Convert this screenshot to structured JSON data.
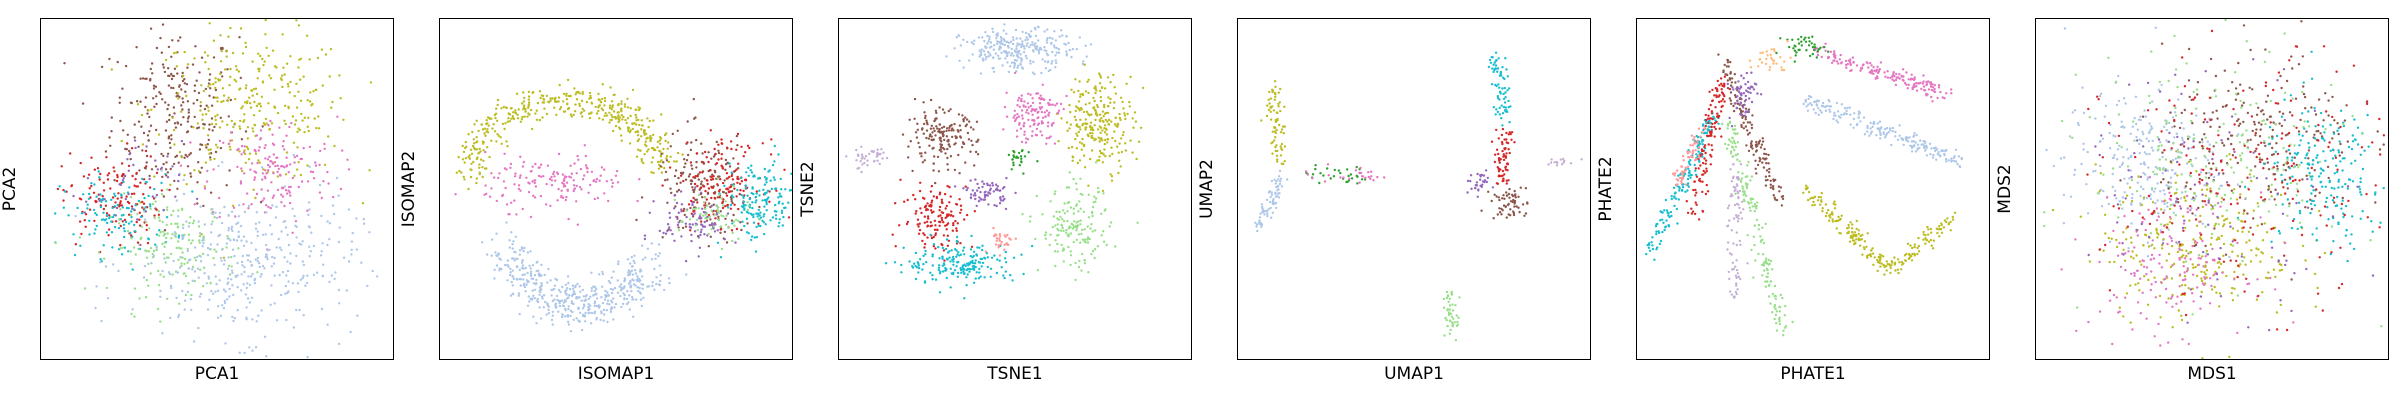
{
  "figure": {
    "description_type": "scatter grid"
  },
  "chart_data": [
    {
      "type": "scatter",
      "method": "PCA",
      "title": "",
      "xlabel": "PCA1",
      "ylabel": "PCA2",
      "xlim": [
        0,
        100
      ],
      "ylim": [
        0,
        100
      ],
      "xticks": [],
      "yticks": [],
      "legend": "none",
      "series": [
        {
          "name": "cluster-brown",
          "color": "#8c564b",
          "center": [
            38,
            72
          ],
          "spread": [
            9,
            13
          ],
          "n": 260
        },
        {
          "name": "cluster-olive",
          "color": "#bcbd22",
          "center": [
            60,
            74
          ],
          "spread": [
            14,
            11
          ],
          "n": 300
        },
        {
          "name": "cluster-pink",
          "color": "#e377c2",
          "center": [
            66,
            55
          ],
          "spread": [
            9,
            8
          ],
          "n": 160
        },
        {
          "name": "cluster-red",
          "color": "#d62728",
          "center": [
            20,
            47
          ],
          "spread": [
            7,
            7
          ],
          "n": 140
        },
        {
          "name": "cluster-cyan",
          "color": "#17becf",
          "center": [
            22,
            42
          ],
          "spread": [
            8,
            6
          ],
          "n": 120
        },
        {
          "name": "cluster-green",
          "color": "#98df8a",
          "center": [
            38,
            33
          ],
          "spread": [
            9,
            7
          ],
          "n": 170
        },
        {
          "name": "cluster-blue",
          "color": "#aec7e8",
          "center": [
            58,
            28
          ],
          "spread": [
            16,
            11
          ],
          "n": 380
        },
        {
          "name": "cluster-purple",
          "color": "#9467bd",
          "center": [
            26,
            50
          ],
          "spread": [
            7,
            7
          ],
          "n": 40
        }
      ]
    },
    {
      "type": "scatter",
      "method": "ISOMAP",
      "title": "",
      "xlabel": "ISOMAP1",
      "ylabel": "ISOMAP2",
      "xlim": [
        0,
        100
      ],
      "ylim": [
        0,
        100
      ],
      "xticks": [],
      "yticks": [],
      "legend": "none",
      "series": [
        {
          "name": "cluster-olive",
          "color": "#bcbd22",
          "shape": "arc",
          "arc": [
            36,
            52,
            28,
            24,
            0.2,
            3.0,
            5
          ],
          "n": 420
        },
        {
          "name": "cluster-blue",
          "color": "#aec7e8",
          "shape": "arc",
          "arc": [
            40,
            40,
            22,
            24,
            3.5,
            5.8,
            7
          ],
          "n": 460
        },
        {
          "name": "cluster-pink",
          "color": "#e377c2",
          "center": [
            33,
            52
          ],
          "spread": [
            10,
            4
          ],
          "n": 150
        },
        {
          "name": "cluster-brown",
          "color": "#8c564b",
          "center": [
            75,
            50
          ],
          "spread": [
            7,
            8
          ],
          "n": 180
        },
        {
          "name": "cluster-red",
          "color": "#d62728",
          "center": [
            80,
            52
          ],
          "spread": [
            6,
            6
          ],
          "n": 150
        },
        {
          "name": "cluster-cyan",
          "color": "#17becf",
          "center": [
            91,
            46
          ],
          "spread": [
            5,
            6
          ],
          "n": 160
        },
        {
          "name": "cluster-purple",
          "color": "#9467bd",
          "center": [
            72,
            40
          ],
          "spread": [
            5,
            4
          ],
          "n": 90
        },
        {
          "name": "cluster-green",
          "color": "#98df8a",
          "center": [
            78,
            42
          ],
          "spread": [
            5,
            4
          ],
          "n": 60
        }
      ]
    },
    {
      "type": "scatter",
      "method": "TSNE",
      "title": "",
      "xlabel": "TSNE1",
      "ylabel": "TSNE2",
      "xlim": [
        0,
        100
      ],
      "ylim": [
        0,
        100
      ],
      "xticks": [],
      "yticks": [],
      "legend": "none",
      "series": [
        {
          "name": "cluster-blue",
          "color": "#aec7e8",
          "center": [
            51,
            91
          ],
          "spread": [
            8,
            3
          ],
          "n": 260
        },
        {
          "name": "cluster-olive",
          "color": "#bcbd22",
          "center": [
            74,
            70
          ],
          "spread": [
            5,
            7
          ],
          "n": 240
        },
        {
          "name": "cluster-pink",
          "color": "#e377c2",
          "center": [
            55,
            72
          ],
          "spread": [
            4,
            4
          ],
          "n": 130
        },
        {
          "name": "cluster-brown",
          "color": "#8c564b",
          "center": [
            29,
            65
          ],
          "spread": [
            5,
            4
          ],
          "n": 170
        },
        {
          "name": "cluster-red",
          "color": "#d62728",
          "center": [
            28,
            42
          ],
          "spread": [
            5,
            5
          ],
          "n": 140
        },
        {
          "name": "cluster-cyan",
          "color": "#17becf",
          "center": [
            35,
            28
          ],
          "spread": [
            8,
            3
          ],
          "n": 190
        },
        {
          "name": "cluster-purple",
          "color": "#9467bd",
          "center": [
            42,
            49
          ],
          "spread": [
            3,
            2
          ],
          "n": 70
        },
        {
          "name": "cluster-green",
          "color": "#98df8a",
          "center": [
            67,
            38
          ],
          "spread": [
            5,
            6
          ],
          "n": 160
        },
        {
          "name": "cluster-lavender",
          "color": "#c5b0d5",
          "center": [
            9,
            59
          ],
          "spread": [
            3,
            2
          ],
          "n": 40
        },
        {
          "name": "cluster-salmon",
          "color": "#ff9896",
          "center": [
            46,
            35
          ],
          "spread": [
            2,
            2
          ],
          "n": 30
        },
        {
          "name": "cluster-dkgreen",
          "color": "#2ca02c",
          "center": [
            51,
            58
          ],
          "spread": [
            1.5,
            2
          ],
          "n": 25
        }
      ]
    },
    {
      "type": "scatter",
      "method": "UMAP",
      "title": "",
      "xlabel": "UMAP1",
      "ylabel": "UMAP2",
      "xlim": [
        0,
        100
      ],
      "ylim": [
        0,
        100
      ],
      "xticks": [],
      "yticks": [],
      "legend": "none",
      "series": [
        {
          "name": "cluster-olive",
          "color": "#bcbd22",
          "shape": "line",
          "line": [
            10,
            80,
            12,
            58
          ],
          "n": 70
        },
        {
          "name": "cluster-blue",
          "color": "#aec7e8",
          "shape": "line",
          "line": [
            12,
            54,
            6,
            38
          ],
          "n": 70
        },
        {
          "name": "cluster-cyan",
          "color": "#17becf",
          "shape": "line",
          "line": [
            73,
            90,
            76,
            70
          ],
          "n": 70
        },
        {
          "name": "cluster-red",
          "color": "#d62728",
          "shape": "line",
          "line": [
            76,
            68,
            75,
            52
          ],
          "n": 70
        },
        {
          "name": "cluster-brown",
          "color": "#8c564b",
          "center": [
            77,
            46
          ],
          "spread": [
            2.5,
            2.5
          ],
          "n": 60
        },
        {
          "name": "cluster-purple",
          "color": "#9467bd",
          "center": [
            68,
            52
          ],
          "spread": [
            2,
            1.5
          ],
          "n": 30
        },
        {
          "name": "cluster-green",
          "color": "#98df8a",
          "shape": "line",
          "line": [
            60,
            20,
            61,
            6
          ],
          "n": 45
        },
        {
          "name": "cluster-dkgreen",
          "color": "#2ca02c",
          "shape": "line",
          "line": [
            20,
            54,
            36,
            53
          ],
          "n": 30
        },
        {
          "name": "cluster-pink",
          "color": "#e377c2",
          "shape": "line",
          "line": [
            20,
            54,
            42,
            54
          ],
          "n": 25
        },
        {
          "name": "cluster-lavender",
          "color": "#c5b0d5",
          "center": [
            91,
            58
          ],
          "spread": [
            2,
            0.6
          ],
          "n": 15
        }
      ]
    },
    {
      "type": "scatter",
      "method": "PHATE",
      "title": "",
      "xlabel": "PHATE1",
      "ylabel": "PHATE2",
      "xlim": [
        0,
        100
      ],
      "ylim": [
        0,
        100
      ],
      "xticks": [],
      "yticks": [],
      "legend": "none",
      "series": [
        {
          "name": "cluster-olive",
          "color": "#bcbd22",
          "shape": "line",
          "line": [
            48,
            50,
            72,
            26
          ],
          "n": 140
        },
        {
          "name": "cluster-olive",
          "color": "#bcbd22",
          "shape": "line",
          "line": [
            72,
            26,
            90,
            42
          ],
          "n": 80
        },
        {
          "name": "cluster-pink",
          "color": "#e377c2",
          "shape": "line",
          "line": [
            52,
            90,
            88,
            78
          ],
          "n": 170
        },
        {
          "name": "cluster-blue",
          "color": "#aec7e8",
          "shape": "line",
          "line": [
            48,
            76,
            92,
            58
          ],
          "n": 200
        },
        {
          "name": "cluster-cyan",
          "color": "#17becf",
          "shape": "line",
          "line": [
            22,
            72,
            4,
            32
          ],
          "n": 160
        },
        {
          "name": "cluster-red",
          "color": "#d62728",
          "shape": "line",
          "line": [
            24,
            82,
            16,
            42
          ],
          "n": 130
        },
        {
          "name": "cluster-brown",
          "color": "#8c564b",
          "shape": "line",
          "line": [
            24,
            88,
            40,
            46
          ],
          "n": 140
        },
        {
          "name": "cluster-green",
          "color": "#98df8a",
          "shape": "line",
          "line": [
            26,
            70,
            42,
            6
          ],
          "n": 160
        },
        {
          "name": "cluster-lavender",
          "color": "#c5b0d5",
          "shape": "line",
          "line": [
            28,
            58,
            28,
            18
          ],
          "n": 80
        },
        {
          "name": "cluster-salmon",
          "color": "#ff9896",
          "shape": "line",
          "line": [
            18,
            68,
            12,
            52
          ],
          "n": 60
        },
        {
          "name": "cluster-purple",
          "color": "#9467bd",
          "center": [
            30,
            78
          ],
          "spread": [
            2,
            4
          ],
          "n": 60
        },
        {
          "name": "cluster-dkgreen",
          "color": "#2ca02c",
          "center": [
            48,
            92
          ],
          "spread": [
            3,
            1.5
          ],
          "n": 40
        },
        {
          "name": "cluster-orange",
          "color": "#ffbb78",
          "center": [
            38,
            88
          ],
          "spread": [
            3,
            2
          ],
          "n": 30
        }
      ]
    },
    {
      "type": "scatter",
      "method": "MDS",
      "title": "",
      "xlabel": "MDS1",
      "ylabel": "MDS2",
      "xlim": [
        0,
        100
      ],
      "ylim": [
        0,
        100
      ],
      "xticks": [],
      "yticks": [],
      "legend": "none",
      "series": [
        {
          "name": "cluster-blue",
          "color": "#aec7e8",
          "center": [
            30,
            58
          ],
          "spread": [
            11,
            11
          ],
          "n": 260
        },
        {
          "name": "cluster-olive",
          "color": "#bcbd22",
          "center": [
            46,
            34
          ],
          "spread": [
            14,
            11
          ],
          "n": 280
        },
        {
          "name": "cluster-brown",
          "color": "#8c564b",
          "center": [
            64,
            64
          ],
          "spread": [
            14,
            13
          ],
          "n": 240
        },
        {
          "name": "cluster-cyan",
          "color": "#17becf",
          "center": [
            82,
            54
          ],
          "spread": [
            9,
            11
          ],
          "n": 200
        },
        {
          "name": "cluster-pink",
          "color": "#e377c2",
          "center": [
            38,
            28
          ],
          "spread": [
            11,
            10
          ],
          "n": 170
        },
        {
          "name": "cluster-green",
          "color": "#98df8a",
          "center": [
            52,
            58
          ],
          "spread": [
            18,
            16
          ],
          "n": 200
        },
        {
          "name": "cluster-red",
          "color": "#d62728",
          "center": [
            60,
            52
          ],
          "spread": [
            20,
            18
          ],
          "n": 200
        },
        {
          "name": "cluster-purple",
          "color": "#9467bd",
          "center": [
            50,
            50
          ],
          "spread": [
            20,
            18
          ],
          "n": 100
        }
      ]
    }
  ]
}
